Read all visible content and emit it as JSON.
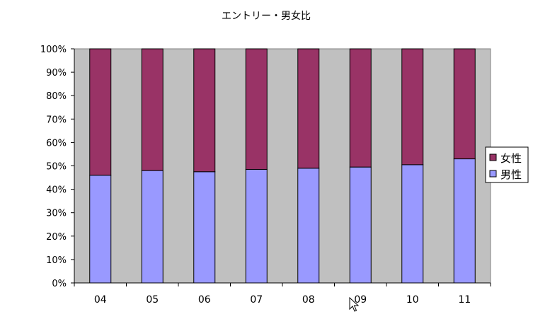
{
  "chart_data": {
    "type": "bar",
    "stacked": "percent",
    "title": "エントリー・男女比",
    "categories": [
      "04",
      "05",
      "06",
      "07",
      "08",
      "09",
      "10",
      "11"
    ],
    "series": [
      {
        "name": "男性",
        "values": [
          46,
          48,
          47.5,
          48.5,
          49,
          49.5,
          50.5,
          53
        ],
        "color": "#9999ff"
      },
      {
        "name": "女性",
        "values": [
          54,
          52,
          52.5,
          51.5,
          51,
          50.5,
          49.5,
          47
        ],
        "color": "#993366"
      }
    ],
    "y_ticks": [
      "0%",
      "10%",
      "20%",
      "30%",
      "40%",
      "50%",
      "60%",
      "70%",
      "80%",
      "90%",
      "100%"
    ],
    "ylim": [
      0,
      100
    ],
    "legend_position": "right",
    "legend_order": [
      "女性",
      "男性"
    ],
    "plot_background": "#c0c0c0",
    "grid": false
  },
  "cursor_icon": "arrow-cursor-icon"
}
